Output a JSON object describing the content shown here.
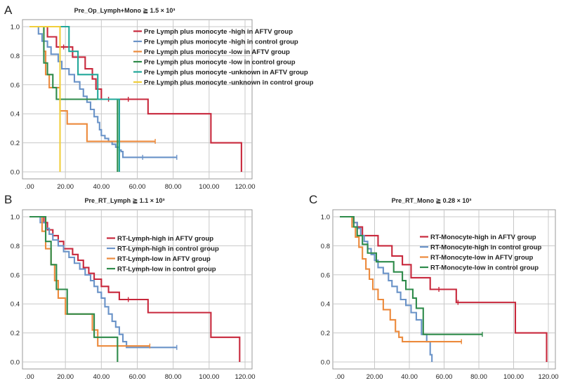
{
  "chart_data": [
    {
      "panel": "A",
      "type": "line",
      "subtype": "kaplan-meier",
      "title": "Pre_Op_Lymph+Mono ≧ 1.5 × 10³",
      "xlim": [
        0,
        120
      ],
      "ylim": [
        0,
        1
      ],
      "xticks": [
        ".00",
        "20.00",
        "40.00",
        "60.00",
        "80.00",
        "100.00",
        "120.00"
      ],
      "yticks": [
        "0.0",
        "0.2",
        "0.4",
        "0.6",
        "0.8",
        "1.0"
      ],
      "legend_position": "top-right",
      "series": [
        {
          "name": "Pre Lymph plus monocyte -high in AFTV group",
          "color": "#c8283c",
          "x": [
            0,
            10,
            15,
            19,
            24,
            31,
            35,
            37,
            40,
            44,
            66,
            101,
            118,
            118
          ],
          "y": [
            1.0,
            0.93,
            0.86,
            0.86,
            0.79,
            0.71,
            0.64,
            0.57,
            0.5,
            0.5,
            0.4,
            0.2,
            0.2,
            0.0
          ],
          "censor_x": [
            19,
            44,
            55
          ],
          "censor_y": [
            0.86,
            0.5,
            0.5
          ]
        },
        {
          "name": "Pre Lymph plus monocyte -high in control group",
          "color": "#6a93c8",
          "x": [
            0,
            5,
            7,
            10,
            12,
            16,
            18,
            22,
            25,
            28,
            30,
            32,
            34,
            36,
            38,
            39,
            40,
            42,
            44,
            46,
            48,
            50,
            51,
            52,
            82
          ],
          "y": [
            1.0,
            0.95,
            0.9,
            0.86,
            0.81,
            0.76,
            0.71,
            0.67,
            0.62,
            0.57,
            0.52,
            0.48,
            0.43,
            0.38,
            0.34,
            0.29,
            0.25,
            0.23,
            0.21,
            0.19,
            0.17,
            0.15,
            0.14,
            0.1,
            0.1
          ],
          "censor_x": [
            63,
            82
          ],
          "censor_y": [
            0.1,
            0.1
          ]
        },
        {
          "name": "Pre Lymph plus monocyte -low in AFTV group",
          "color": "#ec8a3c",
          "x": [
            0,
            8,
            9,
            11,
            17,
            21,
            32,
            70
          ],
          "y": [
            1.0,
            0.83,
            0.67,
            0.58,
            0.42,
            0.33,
            0.21,
            0.21
          ],
          "censor_x": [
            70
          ],
          "censor_y": [
            0.21
          ]
        },
        {
          "name": "Pre Lymph plus monocyte -low in control group",
          "color": "#2e8b4a",
          "x": [
            0,
            8,
            10,
            13,
            15,
            49,
            49
          ],
          "y": [
            1.0,
            0.75,
            0.67,
            0.58,
            0.5,
            0.5,
            0.0
          ],
          "censor_x": [],
          "censor_y": []
        },
        {
          "name": "Pre Lymph plus monocyte -unknown in AFTV group",
          "color": "#22a89a",
          "x": [
            0,
            22,
            27,
            37,
            38,
            50,
            50
          ],
          "y": [
            1.0,
            0.83,
            0.67,
            0.67,
            0.5,
            0.5,
            0.0
          ],
          "censor_x": [],
          "censor_y": []
        },
        {
          "name": "Pre Lymph plus monocyte -unknown in control group",
          "color": "#f0cf3c",
          "x": [
            0,
            17,
            17
          ],
          "y": [
            1.0,
            1.0,
            0.0
          ],
          "censor_x": [],
          "censor_y": []
        }
      ]
    },
    {
      "panel": "B",
      "type": "line",
      "subtype": "kaplan-meier",
      "title": "Pre_RT_Lymph ≧ 1.1 × 10³",
      "xlim": [
        0,
        120
      ],
      "ylim": [
        0,
        1
      ],
      "xticks": [
        ".00",
        "20.00",
        "40.00",
        "60.00",
        "80.00",
        "100.00",
        "120.00"
      ],
      "yticks": [
        "0.0",
        "0.2",
        "0.4",
        "0.6",
        "0.8",
        "1.0"
      ],
      "legend_position": "top-right",
      "series": [
        {
          "name": "RT-Lymph-high in AFTV group",
          "color": "#c8283c",
          "x": [
            0,
            8,
            10,
            13,
            16,
            19,
            24,
            27,
            30,
            33,
            36,
            40,
            44,
            50,
            55,
            66,
            101,
            117,
            117
          ],
          "y": [
            1.0,
            0.96,
            0.91,
            0.87,
            0.83,
            0.78,
            0.74,
            0.7,
            0.65,
            0.61,
            0.57,
            0.52,
            0.48,
            0.43,
            0.43,
            0.34,
            0.17,
            0.17,
            0.0
          ],
          "censor_x": [
            55
          ],
          "censor_y": [
            0.43
          ]
        },
        {
          "name": "RT-Lymph-high in control group",
          "color": "#6a93c8",
          "x": [
            0,
            6,
            9,
            11,
            13,
            16,
            19,
            22,
            25,
            28,
            31,
            34,
            36,
            38,
            40,
            42,
            44,
            46,
            48,
            50,
            52,
            54,
            82
          ],
          "y": [
            1.0,
            0.96,
            0.92,
            0.88,
            0.84,
            0.8,
            0.76,
            0.72,
            0.68,
            0.64,
            0.6,
            0.56,
            0.52,
            0.48,
            0.44,
            0.38,
            0.33,
            0.28,
            0.24,
            0.19,
            0.14,
            0.1,
            0.1
          ],
          "censor_x": [
            82
          ],
          "censor_y": [
            0.1
          ]
        },
        {
          "name": "RT-Lymph-low in AFTV group",
          "color": "#ec8a3c",
          "x": [
            0,
            7,
            9,
            12,
            14,
            16,
            20,
            35,
            38,
            67
          ],
          "y": [
            1.0,
            0.9,
            0.78,
            0.67,
            0.56,
            0.44,
            0.33,
            0.22,
            0.11,
            0.11
          ],
          "censor_x": [
            67
          ],
          "censor_y": [
            0.11
          ]
        },
        {
          "name": "RT-Lymph-low in control group",
          "color": "#2e8b4a",
          "x": [
            0,
            9,
            12,
            15,
            21,
            34,
            36,
            49,
            49
          ],
          "y": [
            1.0,
            0.83,
            0.67,
            0.5,
            0.33,
            0.33,
            0.17,
            0.17,
            0.0
          ],
          "censor_x": [],
          "censor_y": []
        }
      ]
    },
    {
      "panel": "C",
      "type": "line",
      "subtype": "kaplan-meier",
      "title": "Pre_RT_Mono ≧ 0.28 × 10³",
      "xlim": [
        0,
        120
      ],
      "ylim": [
        0,
        1
      ],
      "xticks": [
        ".00",
        "20.00",
        "40.00",
        "60.00",
        "80.00",
        "100.00",
        "120.00"
      ],
      "yticks": [
        "0.0",
        "0.2",
        "0.4",
        "0.6",
        "0.8",
        "1.0"
      ],
      "legend_position": "top-right",
      "series": [
        {
          "name": "RT-Monocyte-high in AFTV group",
          "color": "#c8283c",
          "x": [
            0,
            8,
            10,
            13,
            22,
            30,
            36,
            41,
            52,
            57,
            67,
            101,
            119,
            119
          ],
          "y": [
            1.0,
            0.96,
            0.93,
            0.87,
            0.8,
            0.73,
            0.67,
            0.58,
            0.5,
            0.5,
            0.41,
            0.2,
            0.2,
            0.0
          ],
          "censor_x": [
            57,
            68
          ],
          "censor_y": [
            0.5,
            0.41
          ]
        },
        {
          "name": "RT-Monocyte-high in control group",
          "color": "#6a93c8",
          "x": [
            0,
            8,
            10,
            12,
            14,
            16,
            18,
            20,
            22,
            25,
            28,
            30,
            33,
            35,
            38,
            41,
            44,
            47,
            50,
            52,
            53
          ],
          "y": [
            1.0,
            0.96,
            0.92,
            0.87,
            0.83,
            0.78,
            0.74,
            0.7,
            0.65,
            0.61,
            0.56,
            0.52,
            0.48,
            0.43,
            0.39,
            0.34,
            0.29,
            0.19,
            0.14,
            0.05,
            0.0
          ],
          "censor_x": [],
          "censor_y": []
        },
        {
          "name": "RT-Monocyte-low in AFTV group",
          "color": "#ec8a3c",
          "x": [
            0,
            7,
            9,
            11,
            13,
            15,
            17,
            19,
            22,
            25,
            29,
            32,
            34,
            36,
            70
          ],
          "y": [
            1.0,
            0.93,
            0.86,
            0.79,
            0.71,
            0.64,
            0.57,
            0.5,
            0.43,
            0.36,
            0.29,
            0.21,
            0.17,
            0.14,
            0.14
          ],
          "censor_x": [
            70
          ],
          "censor_y": [
            0.14
          ]
        },
        {
          "name": "RT-Monocyte-low in control group",
          "color": "#2e8b4a",
          "x": [
            0,
            8,
            10,
            13,
            16,
            21,
            31,
            36,
            38,
            42,
            44,
            48,
            82
          ],
          "y": [
            1.0,
            0.93,
            0.87,
            0.81,
            0.75,
            0.69,
            0.62,
            0.56,
            0.5,
            0.44,
            0.37,
            0.19,
            0.19
          ],
          "censor_x": [
            82
          ],
          "censor_y": [
            0.19
          ]
        }
      ]
    }
  ]
}
